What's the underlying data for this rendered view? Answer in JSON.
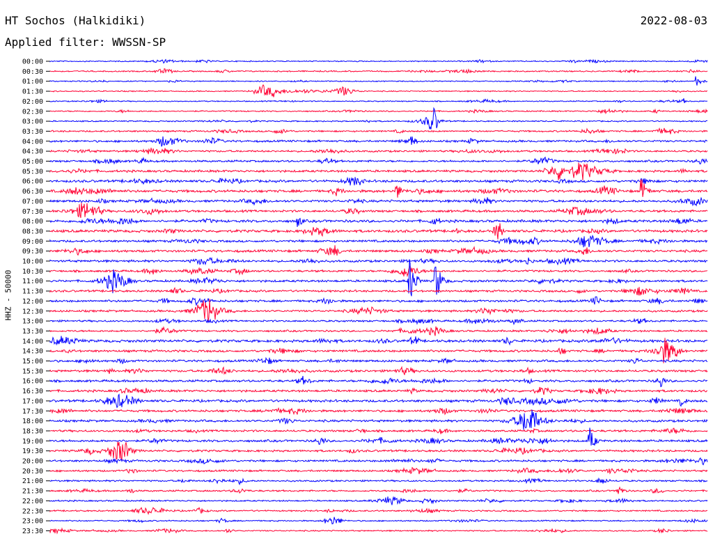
{
  "header": {
    "station": "HT Sochos (Halkidiki)",
    "date": "2022-08-03",
    "filter": "Applied filter: WWSSN-SP"
  },
  "channel_label": "HHZ - 50000",
  "colors": {
    "trace_a": "#0000ff",
    "trace_b": "#ff0033"
  },
  "chart_data": {
    "type": "line",
    "row_labels": [
      "00:00",
      "00:30",
      "01:00",
      "01:30",
      "02:00",
      "02:30",
      "03:00",
      "03:30",
      "04:00",
      "04:30",
      "05:00",
      "05:30",
      "06:00",
      "06:30",
      "07:00",
      "07:30",
      "08:00",
      "08:30",
      "09:00",
      "09:30",
      "10:00",
      "10:30",
      "11:00",
      "11:30",
      "12:00",
      "12:30",
      "13:00",
      "13:30",
      "14:00",
      "14:30",
      "15:00",
      "15:30",
      "16:00",
      "16:30",
      "17:00",
      "17:30",
      "18:00",
      "18:30",
      "19:00",
      "19:30",
      "20:00",
      "20:30",
      "21:00",
      "21:30",
      "22:00",
      "22:30",
      "23:00",
      "23:30"
    ],
    "row_duration_min": 30,
    "noise_level": [
      0.3,
      0.35,
      0.3,
      0.3,
      0.3,
      0.35,
      0.35,
      0.45,
      0.55,
      0.5,
      0.55,
      0.6,
      0.65,
      0.7,
      0.65,
      0.6,
      0.7,
      0.7,
      0.6,
      0.65,
      0.6,
      0.55,
      0.6,
      0.55,
      0.6,
      0.55,
      0.5,
      0.5,
      0.7,
      0.6,
      0.6,
      0.6,
      0.6,
      0.6,
      0.65,
      0.6,
      0.6,
      0.55,
      0.6,
      0.55,
      0.55,
      0.5,
      0.45,
      0.45,
      0.4,
      0.4,
      0.35,
      0.35
    ],
    "events": [
      {
        "row": 2,
        "minute": 29.5,
        "amplitude": 8
      },
      {
        "row": 8,
        "minute": 16.5,
        "amplitude": 9
      },
      {
        "row": 13,
        "minute": 15.8,
        "amplitude": 14
      },
      {
        "row": 13,
        "minute": 27.0,
        "amplitude": 18
      },
      {
        "row": 16,
        "minute": 11.3,
        "amplitude": 10
      },
      {
        "row": 19,
        "minute": 13.0,
        "amplitude": 10
      },
      {
        "row": 20,
        "minute": 21.8,
        "amplitude": 7
      },
      {
        "row": 22,
        "minute": 16.4,
        "amplitude": 38
      },
      {
        "row": 22,
        "minute": 17.6,
        "amplitude": 34
      },
      {
        "row": 34,
        "minute": 28.8,
        "amplitude": 8
      },
      {
        "row": 38,
        "minute": 24.6,
        "amplitude": 22
      },
      {
        "row": 43,
        "minute": 25.9,
        "amplitude": 10
      }
    ]
  }
}
